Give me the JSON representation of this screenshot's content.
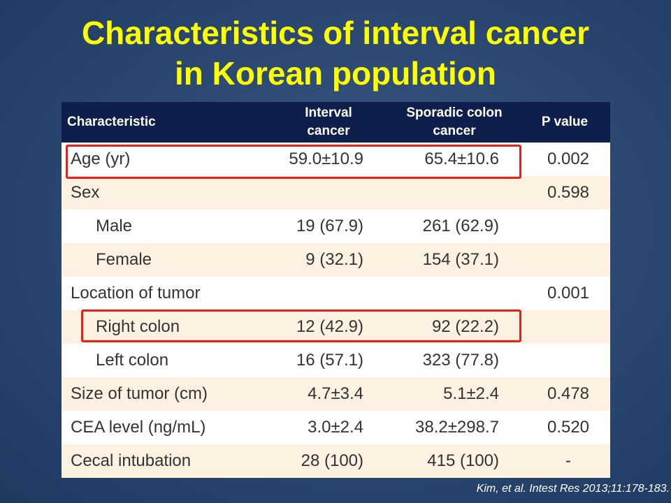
{
  "title": {
    "line1": "Characteristics of interval cancer",
    "line2": "in Korean population"
  },
  "table": {
    "headers": {
      "characteristic": "Characteristic",
      "interval_line1": "Interval",
      "interval_line2": "cancer",
      "sporadic_line1": "Sporadic colon",
      "sporadic_line2": "cancer",
      "p_value": "P value"
    },
    "rows": [
      {
        "label": "Age (yr)",
        "interval": "59.0±10.9",
        "sporadic": "65.4±10.6",
        "p": "0.002"
      },
      {
        "label": "Sex",
        "interval": "",
        "sporadic": "",
        "p": "0.598"
      },
      {
        "label": "Male",
        "interval": "19 (67.9)",
        "sporadic": "261 (62.9)",
        "p": ""
      },
      {
        "label": "Female",
        "interval": "9 (32.1)",
        "sporadic": "154 (37.1)",
        "p": ""
      },
      {
        "label": "Location of tumor",
        "interval": "",
        "sporadic": "",
        "p": "0.001"
      },
      {
        "label": "Right colon",
        "interval": "12 (42.9)",
        "sporadic": "92 (22.2)",
        "p": ""
      },
      {
        "label": "Left colon",
        "interval": "16 (57.1)",
        "sporadic": "323 (77.8)",
        "p": ""
      },
      {
        "label": "Size of tumor (cm)",
        "interval": "4.7±3.4",
        "sporadic": "5.1±2.4",
        "p": "0.478"
      },
      {
        "label": "CEA level (ng/mL)",
        "interval": "3.0±2.4",
        "sporadic": "38.2±298.7",
        "p": "0.520"
      },
      {
        "label": "Cecal intubation",
        "interval": "28 (100)",
        "sporadic": "415 (100)",
        "p": "-"
      }
    ]
  },
  "citation": "Kim, et al. Intest Res 2013;11:178-183.",
  "colors": {
    "title": "#ffff00",
    "header_bg": "#0d1f4a",
    "row_alt_bg": "#fdf2e2",
    "highlight_border": "#e8201a"
  }
}
